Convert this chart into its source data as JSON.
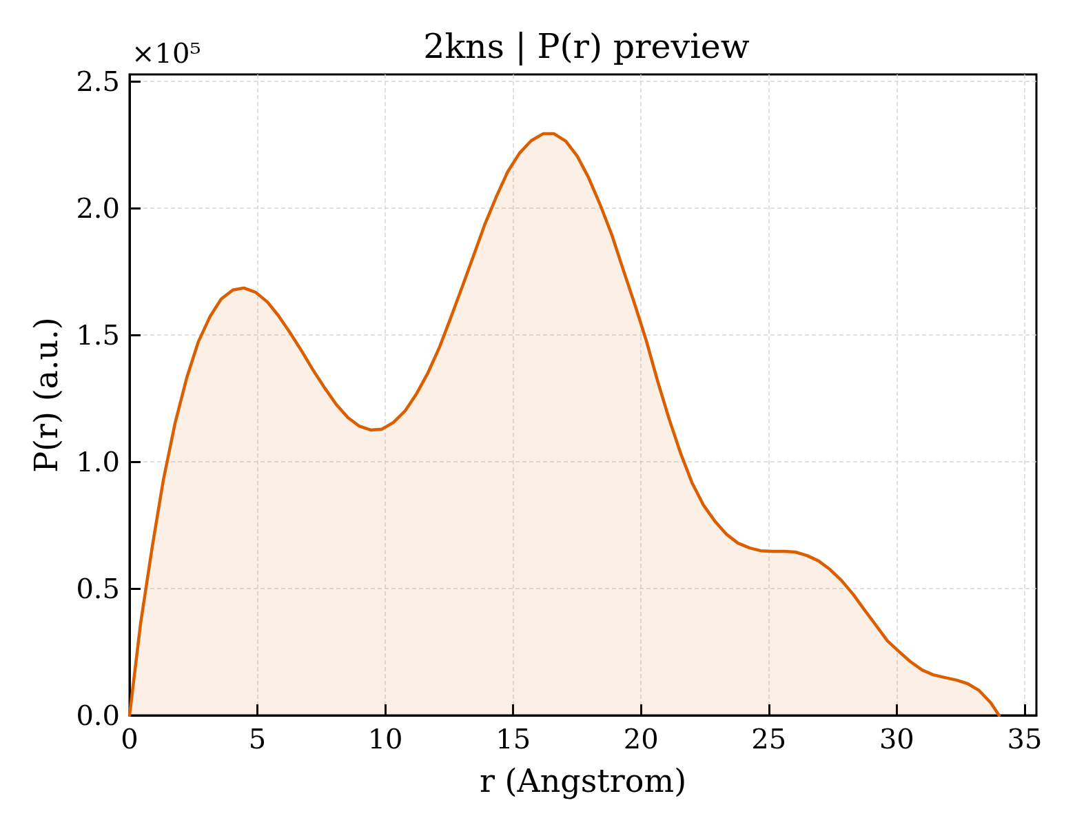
{
  "chart_data": {
    "type": "area",
    "title": "2kns | P(r) preview",
    "xlabel": "r (Angstrom)",
    "ylabel": "P(r) (a.u.)",
    "annotations": [
      "×10⁵"
    ],
    "x": [
      0,
      0.43,
      0.89,
      1.32,
      1.78,
      2.24,
      2.69,
      3.15,
      3.58,
      4.04,
      4.47,
      4.93,
      5.39,
      5.82,
      6.28,
      6.74,
      7.19,
      7.63,
      8.08,
      8.54,
      8.97,
      9.43,
      9.86,
      10.32,
      10.78,
      11.21,
      11.67,
      12.13,
      12.56,
      13.01,
      13.47,
      13.9,
      14.36,
      14.79,
      15.25,
      15.71,
      16.17,
      16.6,
      17.06,
      17.51,
      17.95,
      18.4,
      18.86,
      19.29,
      19.75,
      20.21,
      20.64,
      21.1,
      21.56,
      21.99,
      22.44,
      22.9,
      23.33,
      23.79,
      24.25,
      24.68,
      25.14,
      25.6,
      26.03,
      26.49,
      26.94,
      27.38,
      27.83,
      28.29,
      28.72,
      29.18,
      29.64,
      30.07,
      30.53,
      30.99,
      31.42,
      31.88,
      32.34,
      32.77,
      33.22,
      33.68,
      34.0
    ],
    "series": [
      {
        "color": "#d95f02",
        "values": [
          0,
          0.361,
          0.666,
          0.927,
          1.152,
          1.332,
          1.473,
          1.573,
          1.641,
          1.677,
          1.685,
          1.668,
          1.63,
          1.576,
          1.508,
          1.435,
          1.359,
          1.291,
          1.226,
          1.174,
          1.141,
          1.125,
          1.128,
          1.155,
          1.201,
          1.266,
          1.351,
          1.454,
          1.568,
          1.69,
          1.818,
          1.938,
          2.049,
          2.144,
          2.217,
          2.266,
          2.293,
          2.293,
          2.264,
          2.204,
          2.12,
          2.014,
          1.894,
          1.761,
          1.622,
          1.476,
          1.321,
          1.168,
          1.03,
          0.918,
          0.829,
          0.764,
          0.715,
          0.679,
          0.66,
          0.649,
          0.647,
          0.647,
          0.644,
          0.63,
          0.609,
          0.576,
          0.533,
          0.478,
          0.418,
          0.356,
          0.293,
          0.253,
          0.212,
          0.179,
          0.16,
          0.149,
          0.139,
          0.125,
          0.098,
          0.049,
          0
        ]
      }
    ],
    "xlim": [
      0,
      35.46
    ],
    "xticks": [
      0,
      5,
      10,
      15,
      20,
      25,
      30,
      35
    ],
    "ylim": [
      0,
      2.527
    ],
    "yticks": [
      {
        "value": 0,
        "label": "0.0"
      },
      0.5,
      {
        "value": 1,
        "label": "1.0"
      },
      1.5,
      {
        "value": 2,
        "label": "2.0"
      },
      2.5
    ],
    "grid": true,
    "marker": "none"
  }
}
